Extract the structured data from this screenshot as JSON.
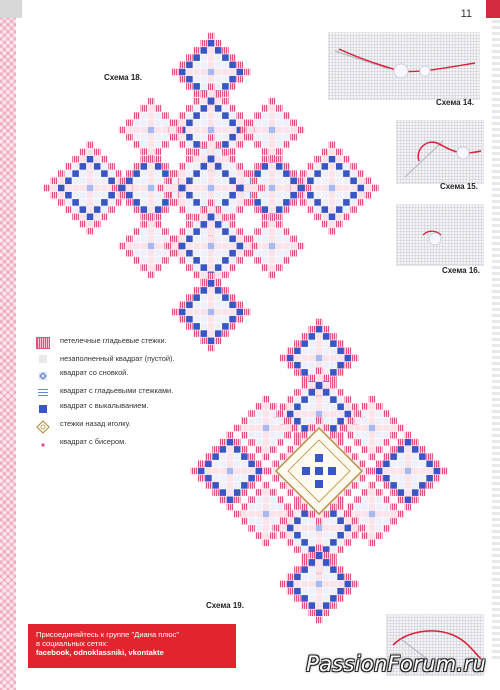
{
  "page": {
    "number": "11"
  },
  "schemes": {
    "s18": "Схема 18.",
    "s19": "Схема 19.",
    "s14": "Схема 14.",
    "s15": "Схема 15.",
    "s16": "Схема 16."
  },
  "legend": [
    {
      "icon": "pink-stitch-block-icon",
      "text": "петелечные гладьевые стежки."
    },
    {
      "icon": "empty-square-icon",
      "text": "незаполненный квадрат (пустой)."
    },
    {
      "icon": "wrapped-square-icon",
      "text": "квадрат со сновкой."
    },
    {
      "icon": "satin-stitch-square-icon",
      "text": "квадрат с гладьевыми стежками."
    },
    {
      "icon": "filled-square-icon",
      "text": "квадрат с выкалыванием."
    },
    {
      "icon": "backstitch-icon",
      "text": "стежки назад иголку."
    },
    {
      "icon": "bead-icon",
      "text": "квадрат с бисером."
    }
  ],
  "banner": {
    "line1": "Присоединяйтесь к группе \"Диана плюс\"",
    "line2": "в социальных сетях:",
    "line3": "facebook, odnoklassniki, vkontakte"
  },
  "watermark": "PassionForum.ru",
  "colors": {
    "pink": "#e0507a",
    "blue": "#3a56c4",
    "red": "#e2242f",
    "gold": "#b88a3c"
  }
}
